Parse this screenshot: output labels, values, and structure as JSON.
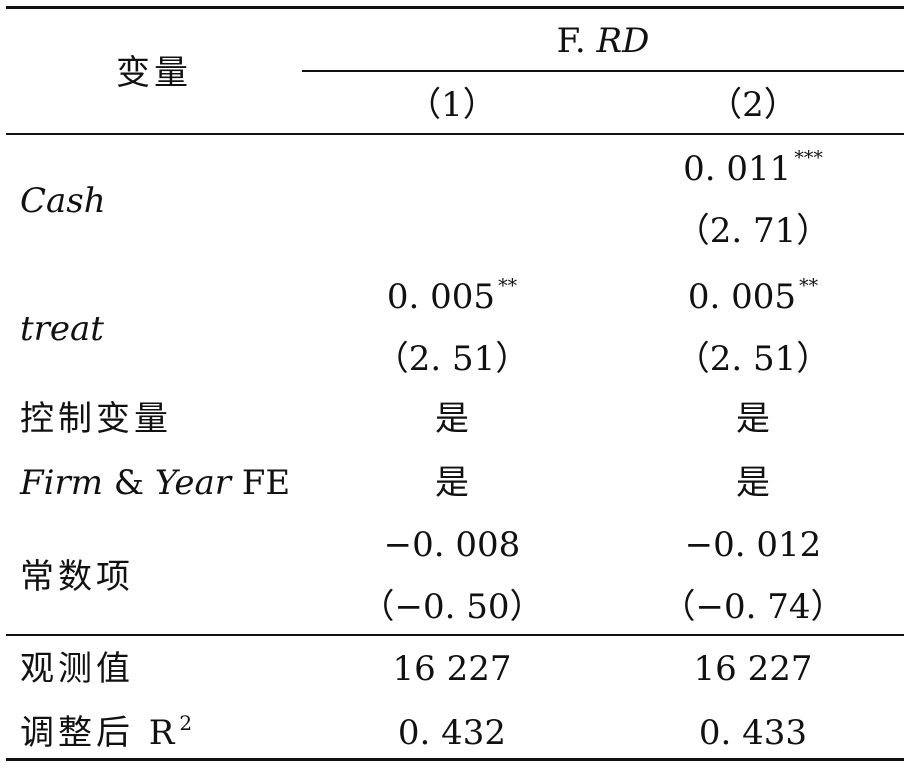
{
  "table": {
    "header": {
      "var_label": "变量",
      "group_label_prefix": "F. ",
      "group_label_italic": "RD",
      "col1": "（1）",
      "col2": "（2）"
    },
    "rows": {
      "cash": {
        "label": "Cash",
        "col2_coef": "0. 011",
        "col2_stars": "***",
        "col2_t": "（2. 71）"
      },
      "treat": {
        "label": "treat",
        "col1_coef": "0. 005",
        "col1_stars": "**",
        "col1_t": "（2. 51）",
        "col2_coef": "0. 005",
        "col2_stars": "**",
        "col2_t": "（2. 51）"
      },
      "controls": {
        "label": "控制变量",
        "col1": "是",
        "col2": "是"
      },
      "fe": {
        "label_italic_a": "Firm",
        "label_amp": " & ",
        "label_italic_b": "Year",
        "label_suffix": " FE",
        "col1": "是",
        "col2": "是"
      },
      "constant": {
        "label": "常数项",
        "col1_coef": "−0. 008",
        "col1_t": "（−0. 50）",
        "col2_coef": "−0. 012",
        "col2_t": "（−0. 74）"
      },
      "obs": {
        "label": "观测值",
        "col1": "16 227",
        "col2": "16 227"
      },
      "r2": {
        "label": "调整后 R",
        "label_sup": "2",
        "col1": "0. 432",
        "col2": "0. 433"
      }
    }
  }
}
